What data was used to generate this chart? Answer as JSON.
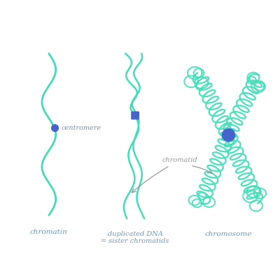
{
  "bg_color": "#ffffff",
  "strand_color": "#40DDB8",
  "centromere_color": "#4466CC",
  "text_color": "#6699BB",
  "arrow_color": "#999999",
  "label_chromatin": "chromatin",
  "label_duplicated": "duplicated DNA\n= sister chromatids",
  "label_chromosome": "chromosome",
  "label_centromere": "centromere",
  "label_chromatid": "chromatid",
  "figsize": [
    4.0,
    3.84
  ],
  "dpi": 100
}
